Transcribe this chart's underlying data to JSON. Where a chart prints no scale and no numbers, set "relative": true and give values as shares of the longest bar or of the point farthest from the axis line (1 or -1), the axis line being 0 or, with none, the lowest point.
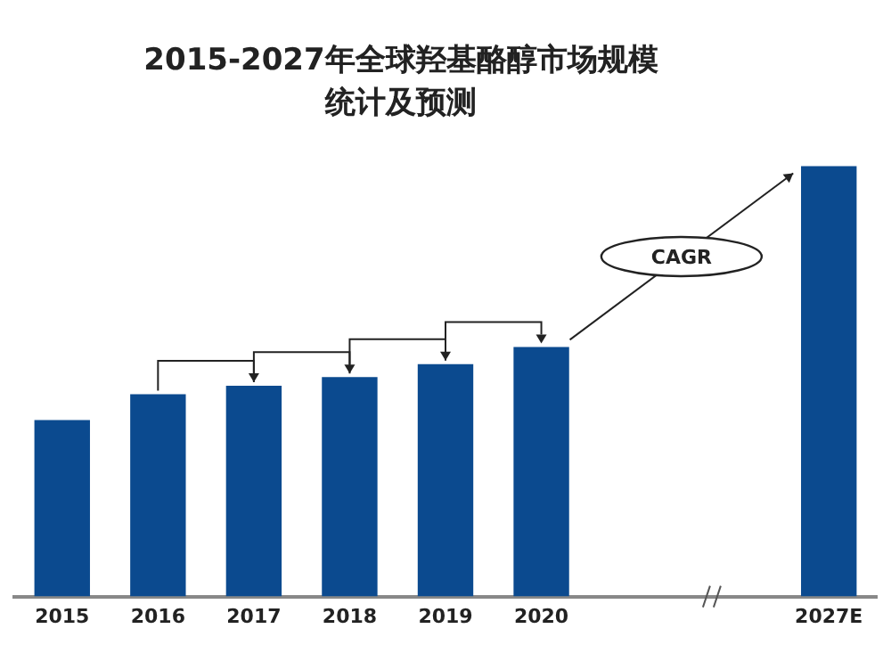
{
  "chart_data": {
    "type": "bar",
    "title": "2015-2027年全球羟基酪醇市场规模统计及预测",
    "categories": [
      "2015",
      "2016",
      "2017",
      "2018",
      "2019",
      "2020",
      null,
      null,
      "2027E"
    ],
    "values": [
      0.41,
      0.47,
      0.49,
      0.51,
      0.54,
      0.58,
      null,
      null,
      1
    ],
    "color": "#0b4a8f",
    "relative": true,
    "grid": false,
    "legend": false,
    "annotations": [
      "CAGR"
    ]
  }
}
